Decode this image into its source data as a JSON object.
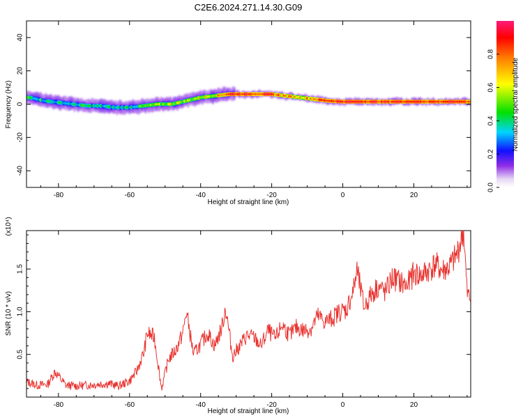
{
  "title": "C2E6.2024.271.14.30.G09",
  "chart_data": [
    {
      "type": "heatmap",
      "xlabel": "Height of straight line (km)",
      "ylabel": "Frequency (Hz)",
      "xlim": [
        -89,
        36
      ],
      "ylim": [
        -50,
        50
      ],
      "xticks": [
        -80,
        -60,
        -40,
        -20,
        0,
        20
      ],
      "yticks": [
        -40,
        -20,
        0,
        20,
        40
      ],
      "ridge": {
        "x": [
          -88,
          -84,
          -80,
          -76,
          -72,
          -68,
          -64,
          -60,
          -56,
          -52,
          -48,
          -44,
          -40,
          -36,
          -32,
          -28,
          -24,
          -20,
          -16,
          -12,
          -8,
          -4,
          0,
          4,
          8,
          12,
          16,
          20,
          24,
          28,
          32,
          35
        ],
        "frequency_hz": [
          4,
          2,
          1,
          0,
          -1,
          -1,
          -2,
          -2,
          -1,
          0,
          0,
          2,
          4,
          5,
          6,
          6,
          6,
          6,
          5,
          4,
          3,
          2,
          1.5,
          1.5,
          1.5,
          1.5,
          1.5,
          1.5,
          1.5,
          1.5,
          1.5,
          1.5
        ],
        "normalized_amplitude": [
          0.45,
          0.4,
          0.35,
          0.35,
          0.4,
          0.35,
          0.35,
          0.4,
          0.45,
          0.5,
          0.6,
          0.55,
          0.6,
          0.65,
          0.9,
          0.95,
          0.9,
          0.85,
          0.75,
          0.7,
          0.8,
          0.9,
          0.95,
          0.95,
          0.95,
          0.9,
          0.95,
          0.95,
          0.9,
          0.9,
          0.95,
          0.9
        ]
      },
      "colorbar": {
        "label": "Normalized spectral amplitude",
        "range": [
          0,
          1
        ],
        "ticks": [
          "0.0",
          "0.2",
          "0.4",
          "0.6",
          "0.8"
        ]
      }
    },
    {
      "type": "line",
      "xlabel": "Height of straight line (km)",
      "ylabel": "SNR (10 * v/v)",
      "scale_label": "(x10⁴)",
      "xlim": [
        -89,
        36
      ],
      "ylim": [
        0,
        1.95
      ],
      "xticks": [
        -80,
        -60,
        -40,
        -20,
        0,
        20
      ],
      "yticks": [
        "0.5",
        "1.0",
        "1.5"
      ],
      "series": [
        {
          "name": "SNR",
          "color": "#e8332f",
          "x": [
            -89,
            -86,
            -83,
            -81,
            -78,
            -75,
            -72,
            -69,
            -66,
            -63,
            -60,
            -58,
            -56,
            -55,
            -53,
            -51,
            -49,
            -47,
            -45,
            -44,
            -42,
            -40,
            -38,
            -36,
            -34,
            -33,
            -31,
            -29,
            -27,
            -25,
            -23,
            -21,
            -19,
            -17,
            -15,
            -13,
            -11,
            -9,
            -7,
            -5,
            -3,
            -1,
            1,
            3,
            4,
            6,
            8,
            10,
            12,
            14,
            16,
            18,
            20,
            22,
            24,
            26,
            28,
            30,
            32,
            34,
            35,
            36
          ],
          "y": [
            0.18,
            0.14,
            0.15,
            0.3,
            0.14,
            0.13,
            0.14,
            0.15,
            0.16,
            0.13,
            0.19,
            0.3,
            0.52,
            0.75,
            0.7,
            0.1,
            0.45,
            0.55,
            0.75,
            1.0,
            0.5,
            0.62,
            0.75,
            0.6,
            0.82,
            1.05,
            0.48,
            0.6,
            0.72,
            0.7,
            0.6,
            0.78,
            0.68,
            0.85,
            0.72,
            0.82,
            0.78,
            0.8,
            0.95,
            0.88,
            0.92,
            1.0,
            1.02,
            1.25,
            1.48,
            1.05,
            1.2,
            1.3,
            1.22,
            1.4,
            1.35,
            1.3,
            1.45,
            1.42,
            1.48,
            1.55,
            1.48,
            1.52,
            1.65,
            1.95,
            1.2,
            1.15
          ]
        }
      ]
    }
  ]
}
